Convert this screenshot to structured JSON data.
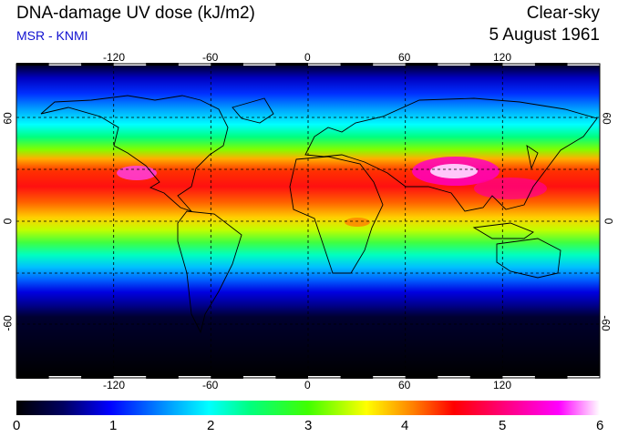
{
  "header": {
    "title": "DNA-damage UV dose (kJ/m2)",
    "credit": "MSR - KNMI",
    "sky_condition": "Clear-sky",
    "date": "5 August 1961"
  },
  "map": {
    "projection": "equirectangular",
    "lon_range": [
      -180,
      180
    ],
    "lat_range": [
      -90,
      90
    ],
    "graticule": "dashed",
    "lon_ticks": [
      "-120",
      "-60",
      "0",
      "60",
      "120"
    ],
    "lat_ticks": [
      "60",
      "0",
      "-60"
    ],
    "coastlines": "black outline"
  },
  "colorbar": {
    "labels": [
      "0",
      "1",
      "2",
      "3",
      "4",
      "5",
      "6"
    ],
    "range": [
      0,
      6
    ],
    "stops": [
      "#000000",
      "#000060",
      "#0000ff",
      "#00aaff",
      "#00ffff",
      "#00ff80",
      "#40ff00",
      "#ffff00",
      "#ff8000",
      "#ff0000",
      "#ff0080",
      "#ff00ff",
      "#ffffff"
    ]
  }
}
